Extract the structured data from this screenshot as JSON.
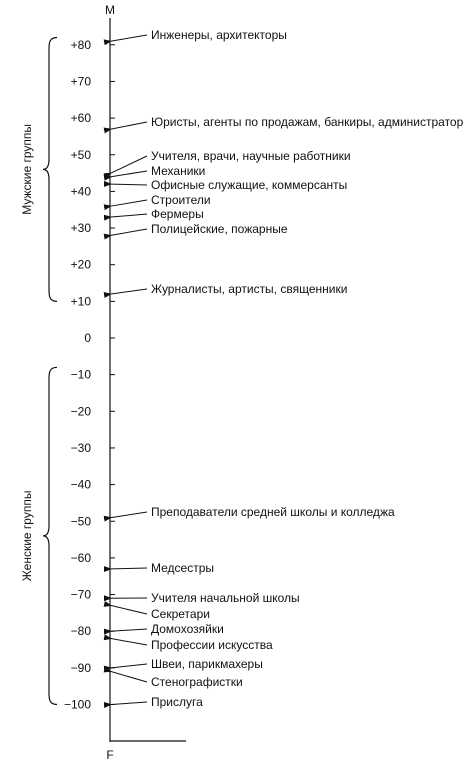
{
  "axis": {
    "top_label": "M",
    "bottom_label": "F",
    "ticks": [
      {
        "value": 80,
        "label": "+80"
      },
      {
        "value": 70,
        "label": "+70"
      },
      {
        "value": 60,
        "label": "+60"
      },
      {
        "value": 50,
        "label": "+50"
      },
      {
        "value": 40,
        "label": "+40"
      },
      {
        "value": 30,
        "label": "+30"
      },
      {
        "value": 20,
        "label": "+20"
      },
      {
        "value": 10,
        "label": "+10"
      },
      {
        "value": 0,
        "label": "0"
      },
      {
        "value": -10,
        "label": "−10"
      },
      {
        "value": -20,
        "label": "−20"
      },
      {
        "value": -30,
        "label": "−30"
      },
      {
        "value": -40,
        "label": "−40"
      },
      {
        "value": -50,
        "label": "−50"
      },
      {
        "value": -60,
        "label": "−60"
      },
      {
        "value": -70,
        "label": "−70"
      },
      {
        "value": -80,
        "label": "−80"
      },
      {
        "value": -90,
        "label": "−90"
      },
      {
        "value": -100,
        "label": "−100"
      }
    ]
  },
  "groups": {
    "male": {
      "label": "Мужские группы",
      "range": [
        10,
        82
      ]
    },
    "female": {
      "label": "Женские группы",
      "range": [
        -100,
        -8
      ]
    }
  },
  "occupations": [
    {
      "label": "Инженеры, архитекторы",
      "value": 81
    },
    {
      "label": "Юристы, агенты по продажам, банкиры, администраторы",
      "value": 57
    },
    {
      "label": "Учителя, врачи, научные работники",
      "value": 45
    },
    {
      "label": "Механики",
      "value": 44
    },
    {
      "label": "Офисные служащие, коммерсанты",
      "value": 42
    },
    {
      "label": "Строители",
      "value": 36
    },
    {
      "label": "Фермеры",
      "value": 33
    },
    {
      "label": "Полицейские, пожарные",
      "value": 28
    },
    {
      "label": "Журналисты, артисты, священники",
      "value": 12
    },
    {
      "label": "Преподаватели средней школы и колледжа",
      "value": -49
    },
    {
      "label": "Медсестры",
      "value": -63
    },
    {
      "label": "Учителя начальной школы",
      "value": -71
    },
    {
      "label": "Секретари",
      "value": -73
    },
    {
      "label": "Домохозяйки",
      "value": -80
    },
    {
      "label": "Профессии искусства",
      "value": -82
    },
    {
      "label": "Швеи, парикмахеры",
      "value": -90
    },
    {
      "label": "Стенографистки",
      "value": -91
    },
    {
      "label": "Прислуга",
      "value": -100
    }
  ]
}
